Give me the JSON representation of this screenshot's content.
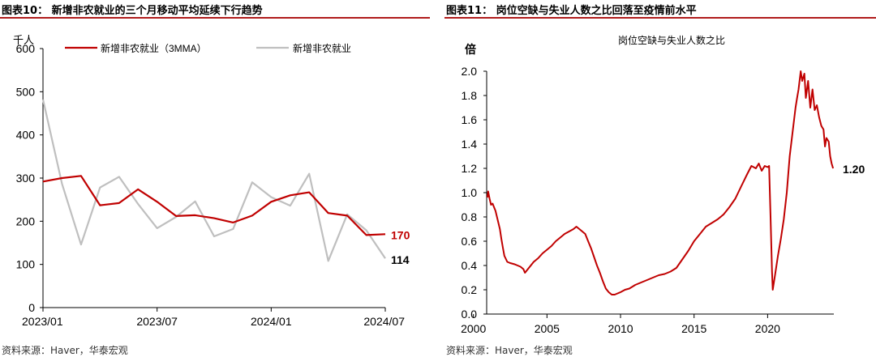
{
  "colors": {
    "red": "#C00000",
    "gray": "#BFBFBF",
    "title_rule": "#B01C1C"
  },
  "left": {
    "figure_title": "图表10：  新增非农就业的三个月移动平均延续下行趋势",
    "source": "资料来源：Haver，华泰宏观",
    "chart_data": {
      "type": "line",
      "unit_label": "千人",
      "x": [
        "2023/01",
        "2023/02",
        "2023/03",
        "2023/04",
        "2023/05",
        "2023/06",
        "2023/07",
        "2023/08",
        "2023/09",
        "2023/10",
        "2023/11",
        "2023/12",
        "2024/01",
        "2024/02",
        "2024/03",
        "2024/04",
        "2024/05",
        "2024/06",
        "2024/07"
      ],
      "x_tick_labels": [
        "2023/01",
        "2023/07",
        "2024/01",
        "2024/07"
      ],
      "x_tick_indices": [
        0,
        6,
        12,
        18
      ],
      "ylim": [
        0,
        600
      ],
      "yticks": [
        0,
        100,
        200,
        300,
        400,
        500,
        600
      ],
      "legend_position": "top",
      "series": [
        {
          "name": "新增非农就业（3MMA）",
          "color": "#C00000",
          "values": [
            292,
            300,
            305,
            237,
            242,
            274,
            245,
            212,
            214,
            207,
            197,
            213,
            245,
            260,
            267,
            219,
            213,
            168,
            170
          ]
        },
        {
          "name": "新增非农就业",
          "color": "#BFBFBF",
          "values": [
            482,
            287,
            146,
            278,
            303,
            240,
            184,
            210,
            246,
            165,
            182,
            290,
            256,
            236,
            310,
            108,
            216,
            179,
            114
          ]
        }
      ],
      "end_labels": [
        "170",
        "114"
      ]
    }
  },
  "right": {
    "figure_title": "图表11：  岗位空缺与失业人数之比回落至疫情前水平",
    "source": "资料来源：Haver，华泰宏观",
    "chart_data": {
      "type": "line",
      "title": "岗位空缺与失业人数之比",
      "unit_label": "倍",
      "xlim": [
        2000.9,
        2024.5
      ],
      "x_ticks": [
        2000,
        2005,
        2010,
        2015,
        2020
      ],
      "ylim": [
        0,
        2.0
      ],
      "yticks": [
        0.0,
        0.2,
        0.4,
        0.6,
        0.8,
        1.0,
        1.2,
        1.4,
        1.6,
        1.8,
        2.0
      ],
      "series": [
        {
          "color": "#C00000",
          "points": [
            [
              2000.95,
              0.96
            ],
            [
              2001.0,
              1.01
            ],
            [
              2001.1,
              0.95
            ],
            [
              2001.2,
              0.9
            ],
            [
              2001.3,
              0.91
            ],
            [
              2001.5,
              0.85
            ],
            [
              2001.6,
              0.8
            ],
            [
              2001.8,
              0.7
            ],
            [
              2001.9,
              0.62
            ],
            [
              2002.0,
              0.55
            ],
            [
              2002.1,
              0.48
            ],
            [
              2002.3,
              0.43
            ],
            [
              2002.5,
              0.42
            ],
            [
              2002.8,
              0.41
            ],
            [
              2003.0,
              0.4
            ],
            [
              2003.2,
              0.39
            ],
            [
              2003.4,
              0.37
            ],
            [
              2003.5,
              0.34
            ],
            [
              2003.7,
              0.37
            ],
            [
              2003.9,
              0.4
            ],
            [
              2004.1,
              0.43
            ],
            [
              2004.4,
              0.46
            ],
            [
              2004.7,
              0.5
            ],
            [
              2005.0,
              0.53
            ],
            [
              2005.3,
              0.56
            ],
            [
              2005.6,
              0.6
            ],
            [
              2005.9,
              0.63
            ],
            [
              2006.2,
              0.66
            ],
            [
              2006.5,
              0.68
            ],
            [
              2006.8,
              0.7
            ],
            [
              2007.0,
              0.72
            ],
            [
              2007.2,
              0.7
            ],
            [
              2007.4,
              0.68
            ],
            [
              2007.6,
              0.66
            ],
            [
              2007.8,
              0.6
            ],
            [
              2008.0,
              0.54
            ],
            [
              2008.2,
              0.47
            ],
            [
              2008.4,
              0.4
            ],
            [
              2008.6,
              0.34
            ],
            [
              2008.8,
              0.27
            ],
            [
              2009.0,
              0.21
            ],
            [
              2009.2,
              0.18
            ],
            [
              2009.4,
              0.16
            ],
            [
              2009.6,
              0.16
            ],
            [
              2009.8,
              0.17
            ],
            [
              2010.0,
              0.18
            ],
            [
              2010.3,
              0.2
            ],
            [
              2010.6,
              0.21
            ],
            [
              2011.0,
              0.24
            ],
            [
              2011.4,
              0.26
            ],
            [
              2011.8,
              0.28
            ],
            [
              2012.2,
              0.3
            ],
            [
              2012.6,
              0.32
            ],
            [
              2013.0,
              0.33
            ],
            [
              2013.4,
              0.35
            ],
            [
              2013.8,
              0.38
            ],
            [
              2014.2,
              0.45
            ],
            [
              2014.6,
              0.52
            ],
            [
              2015.0,
              0.6
            ],
            [
              2015.4,
              0.66
            ],
            [
              2015.8,
              0.72
            ],
            [
              2016.2,
              0.75
            ],
            [
              2016.6,
              0.78
            ],
            [
              2017.0,
              0.82
            ],
            [
              2017.4,
              0.88
            ],
            [
              2017.8,
              0.95
            ],
            [
              2018.2,
              1.05
            ],
            [
              2018.6,
              1.15
            ],
            [
              2018.9,
              1.22
            ],
            [
              2019.2,
              1.2
            ],
            [
              2019.4,
              1.24
            ],
            [
              2019.6,
              1.18
            ],
            [
              2019.8,
              1.22
            ],
            [
              2020.0,
              1.21
            ],
            [
              2020.1,
              1.22
            ],
            [
              2020.2,
              0.8
            ],
            [
              2020.3,
              0.35
            ],
            [
              2020.35,
              0.2
            ],
            [
              2020.5,
              0.32
            ],
            [
              2020.7,
              0.48
            ],
            [
              2020.9,
              0.62
            ],
            [
              2021.1,
              0.78
            ],
            [
              2021.3,
              1.0
            ],
            [
              2021.5,
              1.3
            ],
            [
              2021.7,
              1.5
            ],
            [
              2021.9,
              1.7
            ],
            [
              2022.0,
              1.78
            ],
            [
              2022.1,
              1.85
            ],
            [
              2022.25,
              2.0
            ],
            [
              2022.35,
              1.92
            ],
            [
              2022.5,
              1.98
            ],
            [
              2022.6,
              1.78
            ],
            [
              2022.75,
              1.92
            ],
            [
              2022.9,
              1.7
            ],
            [
              2023.05,
              1.85
            ],
            [
              2023.2,
              1.68
            ],
            [
              2023.35,
              1.72
            ],
            [
              2023.5,
              1.62
            ],
            [
              2023.65,
              1.55
            ],
            [
              2023.8,
              1.52
            ],
            [
              2023.9,
              1.38
            ],
            [
              2024.0,
              1.45
            ],
            [
              2024.15,
              1.42
            ],
            [
              2024.25,
              1.3
            ],
            [
              2024.35,
              1.24
            ],
            [
              2024.45,
              1.2
            ]
          ]
        }
      ],
      "end_label": "1.20"
    }
  }
}
